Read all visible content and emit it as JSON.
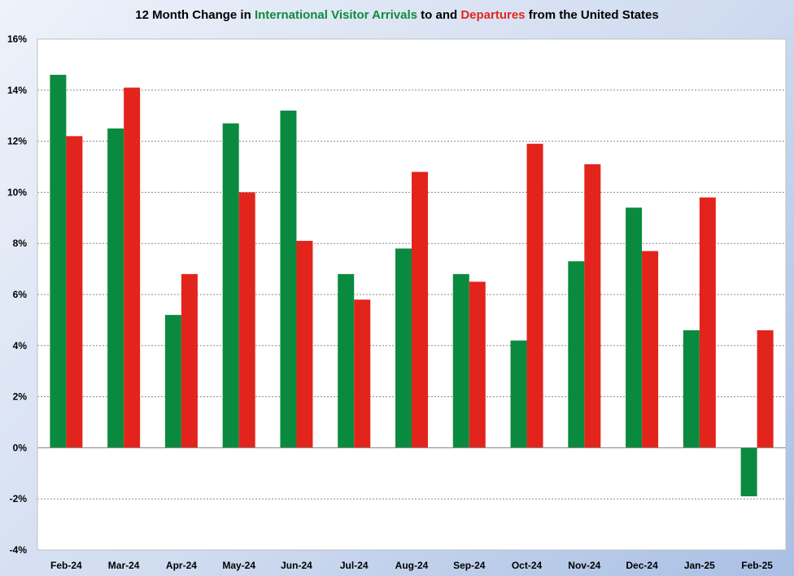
{
  "chart_data": {
    "type": "bar",
    "title_parts": [
      {
        "text": "12 Month Change in ",
        "color": "#000000"
      },
      {
        "text": "International Visitor Arrivals",
        "color": "#0f8a3c"
      },
      {
        "text": " to and ",
        "color": "#000000"
      },
      {
        "text": "Departures",
        "color": "#e3261c"
      },
      {
        "text": " from the United States",
        "color": "#000000"
      }
    ],
    "categories": [
      "Feb-24",
      "Mar-24",
      "Apr-24",
      "May-24",
      "Jun-24",
      "Jul-24",
      "Aug-24",
      "Sep-24",
      "Oct-24",
      "Nov-24",
      "Dec-24",
      "Jan-25",
      "Feb-25"
    ],
    "series": [
      {
        "key": "arrivals",
        "color": "#0a8a3e",
        "values": [
          14.6,
          12.5,
          5.2,
          12.7,
          13.2,
          6.8,
          7.8,
          6.8,
          4.2,
          7.3,
          9.4,
          4.6,
          -1.9
        ]
      },
      {
        "key": "departures",
        "color": "#e3241c",
        "values": [
          12.2,
          14.1,
          6.8,
          10.0,
          8.1,
          5.8,
          10.8,
          6.5,
          11.9,
          11.1,
          7.7,
          9.8,
          4.6
        ]
      }
    ],
    "y_ticks": [
      16,
      14,
      12,
      10,
      8,
      6,
      4,
      2,
      0,
      -2,
      -4
    ],
    "y_tick_labels": [
      "16%",
      "14%",
      "12%",
      "10%",
      "8%",
      "6%",
      "4%",
      "2%",
      "0%",
      "-2%",
      "-4%"
    ],
    "ylim": [
      -4,
      16
    ],
    "grid": true,
    "legend": "none"
  }
}
